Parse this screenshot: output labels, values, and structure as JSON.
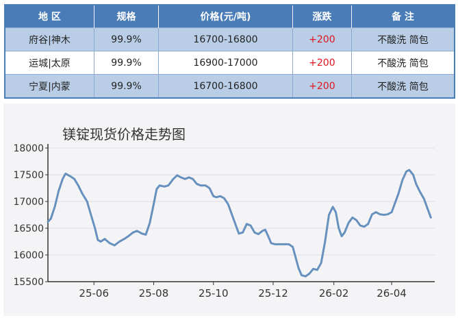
{
  "table": {
    "headers": [
      "地 区",
      "规格",
      "价格(元/吨)",
      "涨跌",
      "备  注"
    ],
    "rows": [
      {
        "region": "府谷|神木",
        "spec": "99.9%",
        "price": "16700-16800",
        "change": "+200",
        "note": "不酸洗 简包"
      },
      {
        "region": "运城|太原",
        "spec": "99.9%",
        "price": "16900-17000",
        "change": "+200",
        "note": "不酸洗 简包"
      },
      {
        "region": "宁夏|内蒙",
        "spec": "99.9%",
        "price": "16700-16800",
        "change": "+200",
        "note": "不酸洗 简包"
      }
    ]
  },
  "colors": {
    "header_bg": "#4a7db8",
    "row_shade": "#b9cde6",
    "change_up": "#e0121b",
    "line": "#6690bd"
  },
  "chart_data": {
    "type": "line",
    "title": "镁锭现货价格走势图",
    "xlabel": "",
    "ylabel": "",
    "ylim": [
      15500,
      18000
    ],
    "yticks": [
      15500,
      16000,
      16500,
      17000,
      17500,
      18000
    ],
    "xlim": [
      "2025-04-15",
      "2026-05-15"
    ],
    "xticks": [
      {
        "label": "25-06",
        "date": "2025-06-01"
      },
      {
        "label": "25-08",
        "date": "2025-08-01"
      },
      {
        "label": "25-10",
        "date": "2025-10-01"
      },
      {
        "label": "25-12",
        "date": "2025-12-01"
      },
      {
        "label": "26-02",
        "date": "2026-02-01"
      },
      {
        "label": "26-04",
        "date": "2026-04-01"
      }
    ],
    "grid": true,
    "series": [
      {
        "name": "",
        "points": [
          [
            "2025-04-15",
            16620
          ],
          [
            "2025-04-18",
            16680
          ],
          [
            "2025-04-22",
            16900
          ],
          [
            "2025-04-26",
            17200
          ],
          [
            "2025-04-30",
            17420
          ],
          [
            "2025-05-03",
            17520
          ],
          [
            "2025-05-08",
            17470
          ],
          [
            "2025-05-12",
            17420
          ],
          [
            "2025-05-16",
            17300
          ],
          [
            "2025-05-20",
            17150
          ],
          [
            "2025-05-25",
            17000
          ],
          [
            "2025-05-29",
            16750
          ],
          [
            "2025-06-02",
            16500
          ],
          [
            "2025-06-05",
            16280
          ],
          [
            "2025-06-08",
            16250
          ],
          [
            "2025-06-12",
            16300
          ],
          [
            "2025-06-17",
            16220
          ],
          [
            "2025-06-22",
            16180
          ],
          [
            "2025-06-27",
            16250
          ],
          [
            "2025-07-02",
            16300
          ],
          [
            "2025-07-06",
            16350
          ],
          [
            "2025-07-11",
            16420
          ],
          [
            "2025-07-15",
            16450
          ],
          [
            "2025-07-20",
            16400
          ],
          [
            "2025-07-24",
            16380
          ],
          [
            "2025-07-28",
            16600
          ],
          [
            "2025-08-01",
            16950
          ],
          [
            "2025-08-04",
            17230
          ],
          [
            "2025-08-07",
            17300
          ],
          [
            "2025-08-12",
            17280
          ],
          [
            "2025-08-16",
            17300
          ],
          [
            "2025-08-21",
            17420
          ],
          [
            "2025-08-25",
            17490
          ],
          [
            "2025-08-29",
            17450
          ],
          [
            "2025-09-02",
            17420
          ],
          [
            "2025-09-06",
            17450
          ],
          [
            "2025-09-10",
            17420
          ],
          [
            "2025-09-14",
            17330
          ],
          [
            "2025-09-18",
            17300
          ],
          [
            "2025-09-23",
            17300
          ],
          [
            "2025-09-27",
            17250
          ],
          [
            "2025-10-01",
            17100
          ],
          [
            "2025-10-04",
            17080
          ],
          [
            "2025-10-08",
            17100
          ],
          [
            "2025-10-12",
            17060
          ],
          [
            "2025-10-16",
            16950
          ],
          [
            "2025-10-20",
            16750
          ],
          [
            "2025-10-24",
            16550
          ],
          [
            "2025-10-27",
            16400
          ],
          [
            "2025-10-31",
            16420
          ],
          [
            "2025-11-04",
            16580
          ],
          [
            "2025-11-08",
            16550
          ],
          [
            "2025-11-12",
            16420
          ],
          [
            "2025-11-16",
            16390
          ],
          [
            "2025-11-20",
            16450
          ],
          [
            "2025-11-23",
            16470
          ],
          [
            "2025-11-26",
            16350
          ],
          [
            "2025-11-29",
            16220
          ],
          [
            "2025-12-03",
            16200
          ],
          [
            "2025-12-10",
            16200
          ],
          [
            "2025-12-17",
            16200
          ],
          [
            "2025-12-21",
            16150
          ],
          [
            "2025-12-24",
            15950
          ],
          [
            "2025-12-27",
            15750
          ],
          [
            "2025-12-30",
            15620
          ],
          [
            "2026-01-03",
            15600
          ],
          [
            "2026-01-07",
            15650
          ],
          [
            "2026-01-11",
            15740
          ],
          [
            "2026-01-15",
            15720
          ],
          [
            "2026-01-19",
            15850
          ],
          [
            "2026-01-23",
            16250
          ],
          [
            "2026-01-27",
            16750
          ],
          [
            "2026-01-31",
            16900
          ],
          [
            "2026-02-03",
            16800
          ],
          [
            "2026-02-06",
            16500
          ],
          [
            "2026-02-09",
            16350
          ],
          [
            "2026-02-12",
            16420
          ],
          [
            "2026-02-16",
            16600
          ],
          [
            "2026-02-20",
            16700
          ],
          [
            "2026-02-24",
            16650
          ],
          [
            "2026-02-28",
            16550
          ],
          [
            "2026-03-04",
            16530
          ],
          [
            "2026-03-08",
            16580
          ],
          [
            "2026-03-12",
            16760
          ],
          [
            "2026-03-16",
            16800
          ],
          [
            "2026-03-20",
            16760
          ],
          [
            "2026-03-24",
            16750
          ],
          [
            "2026-03-28",
            16760
          ],
          [
            "2026-04-01",
            16800
          ],
          [
            "2026-04-04",
            16950
          ],
          [
            "2026-04-08",
            17150
          ],
          [
            "2026-04-12",
            17400
          ],
          [
            "2026-04-16",
            17560
          ],
          [
            "2026-04-19",
            17590
          ],
          [
            "2026-04-23",
            17500
          ],
          [
            "2026-04-26",
            17330
          ],
          [
            "2026-04-30",
            17180
          ],
          [
            "2026-05-04",
            17050
          ],
          [
            "2026-05-08",
            16850
          ],
          [
            "2026-05-11",
            16700
          ]
        ]
      }
    ]
  }
}
